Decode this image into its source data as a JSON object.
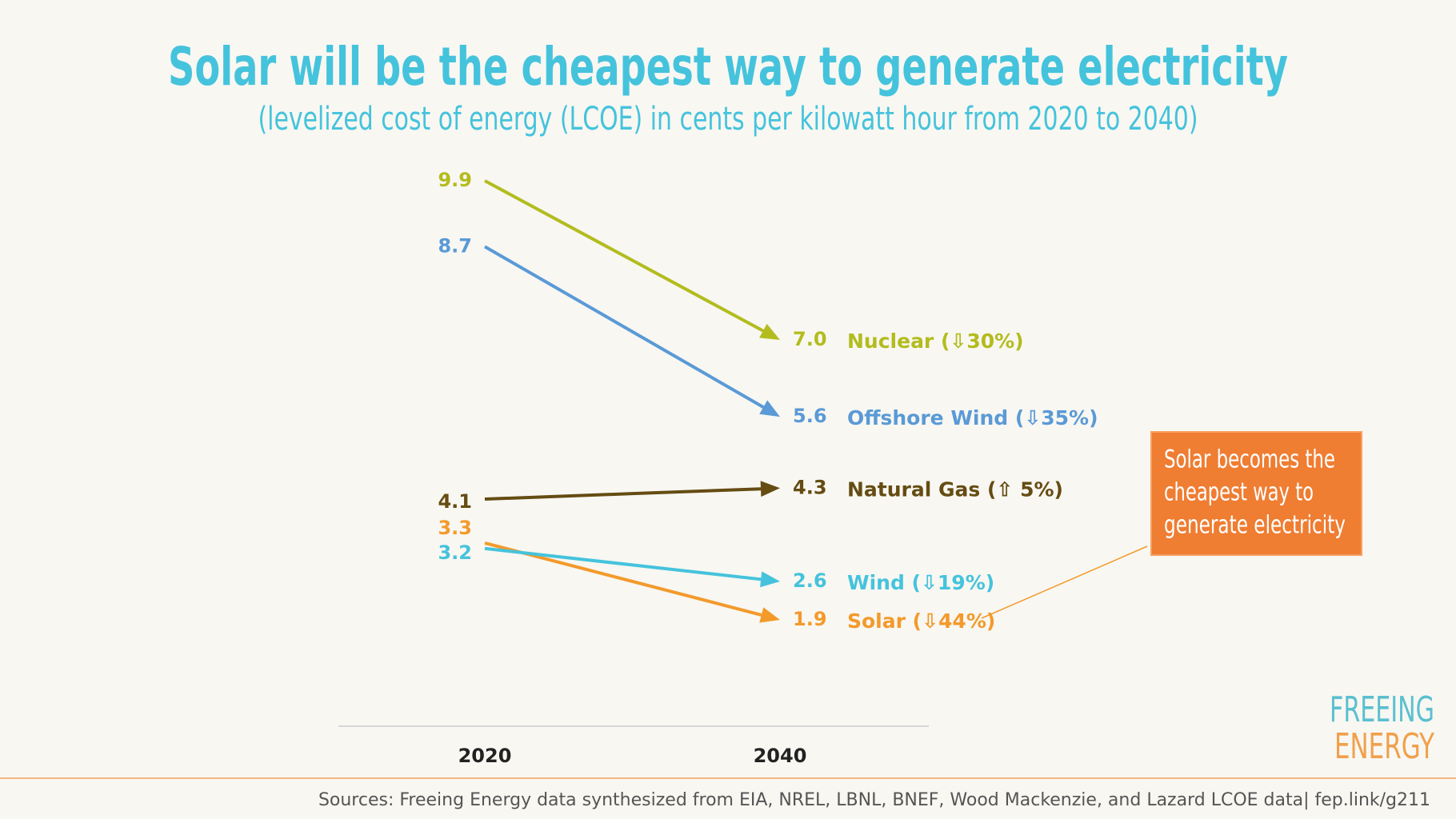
{
  "chart_data": {
    "type": "slope",
    "title": "Solar will be the cheapest way to generate electricity",
    "subtitle": "(levelized cost of energy (LCOE) in cents per kilowatt hour from 2020 to 2040)",
    "categories": [
      "2020",
      "2040"
    ],
    "series": [
      {
        "name": "Nuclear (⇩30%)",
        "color": "#b3bc1e",
        "values": [
          9.9,
          7.0
        ],
        "value_labels": [
          "9.9",
          "7.0"
        ]
      },
      {
        "name": "Offshore Wind (⇩35%)",
        "color": "#5a9ad6",
        "values": [
          8.7,
          5.6
        ],
        "value_labels": [
          "8.7",
          "5.6"
        ]
      },
      {
        "name": "Natural Gas (⇧ 5%)",
        "color": "#654c12",
        "values": [
          4.1,
          4.3
        ],
        "value_labels": [
          "4.1",
          "4.3"
        ]
      },
      {
        "name": "Solar (⇩44%)",
        "color": "#f39a2b",
        "values": [
          3.3,
          1.9
        ],
        "value_labels": [
          "3.3",
          "1.9"
        ]
      },
      {
        "name": "Wind (⇩19%)",
        "color": "#45c3dc",
        "values": [
          3.2,
          2.6
        ],
        "value_labels": [
          "3.2",
          "2.6"
        ]
      }
    ],
    "annotation": [
      "Solar becomes the",
      "cheapest way to",
      "generate electricity"
    ],
    "logo": [
      "FREEING",
      "ENERGY"
    ],
    "source": "Sources: Freeing Energy data synthesized from EIA, NREL, LBNL, BNEF, Wood Mackenzie, and Lazard LCOE data| fep.link/g211"
  }
}
